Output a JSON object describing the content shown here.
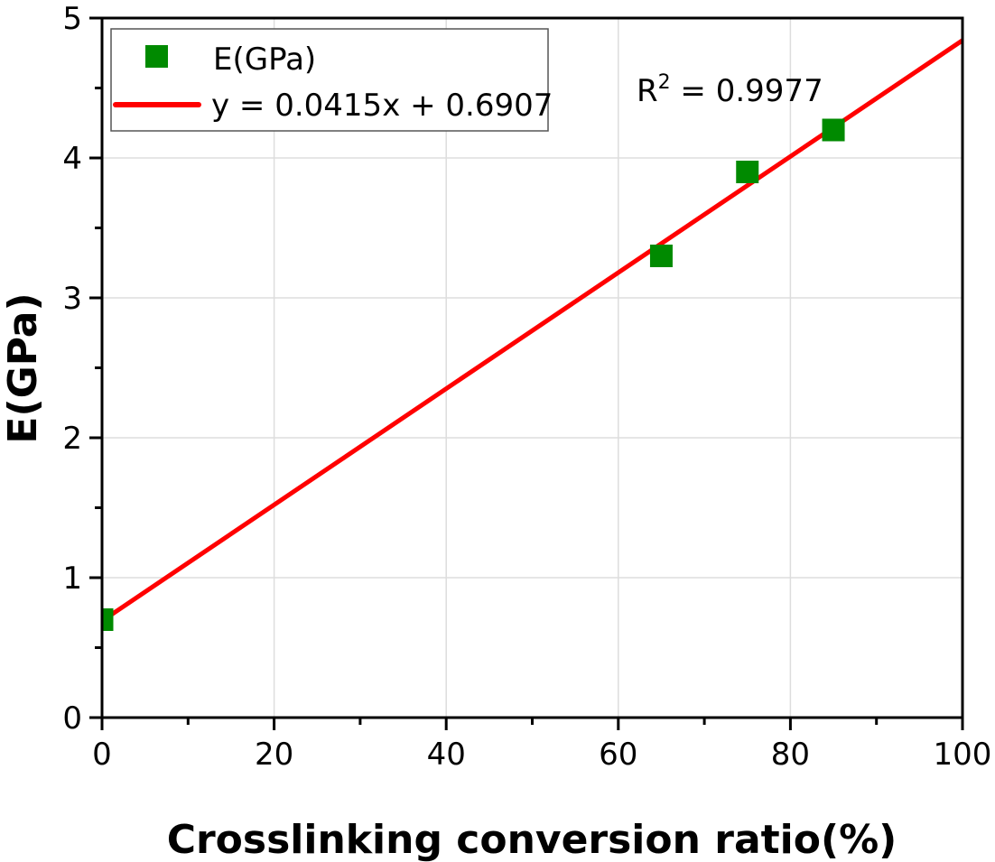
{
  "chart_data": {
    "type": "scatter",
    "title": "",
    "xlabel": "Crosslinking conversion ratio(%)",
    "ylabel": "E(GPa)",
    "xlim": [
      0,
      100
    ],
    "ylim": [
      0,
      5
    ],
    "xticks": [
      "0",
      "20",
      "40",
      "60",
      "80",
      "100"
    ],
    "yticks": [
      "0",
      "1",
      "2",
      "3",
      "4",
      "5"
    ],
    "grid": true,
    "legend_position": "top-left",
    "series": [
      {
        "name": "E(GPa)",
        "kind": "scatter",
        "color": "#008a00",
        "x": [
          0,
          65,
          75,
          85
        ],
        "y": [
          0.7,
          3.3,
          3.9,
          4.2
        ]
      },
      {
        "name": "y = 0.0415x + 0.6907",
        "kind": "line",
        "color": "#ff0000",
        "slope": 0.0415,
        "intercept": 0.6907,
        "x": [
          0,
          100
        ]
      }
    ],
    "annotations": [
      {
        "text": "R",
        "sup": "2",
        "rest": " = 0.9977"
      }
    ]
  }
}
